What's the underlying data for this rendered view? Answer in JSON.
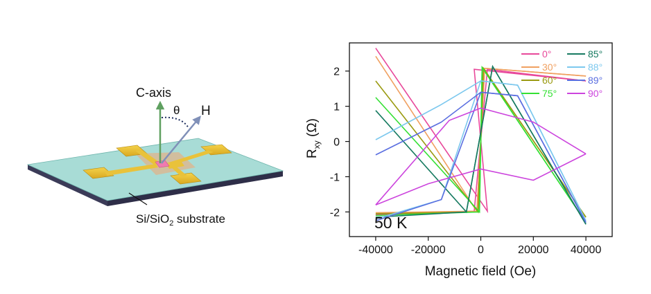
{
  "device": {
    "c_axis_label": "C-axis",
    "theta_label": "θ",
    "field_label": "H",
    "substrate_label_main": "Si/SiO",
    "substrate_label_sub": "2",
    "substrate_label_rest": " substrate"
  },
  "chart_data": {
    "type": "line",
    "title": "",
    "annotation": "50 K",
    "xlabel": "Magnetic field (Oe)",
    "ylabel_main": "R",
    "ylabel_sub": "xy",
    "ylabel_rest": " (Ω)",
    "xlim": [
      -50000,
      50000
    ],
    "ylim": [
      -2.7,
      2.8
    ],
    "x_ticks": [
      {
        "v": -40000,
        "label": "-40000"
      },
      {
        "v": -20000,
        "label": "-20000"
      },
      {
        "v": 0,
        "label": "0"
      },
      {
        "v": 20000,
        "label": "20000"
      },
      {
        "v": 40000,
        "label": "40000"
      }
    ],
    "y_ticks": [
      {
        "v": 2,
        "label": "2"
      },
      {
        "v": 1,
        "label": "1"
      },
      {
        "v": 0,
        "label": "0"
      },
      {
        "v": -1,
        "label": "-1"
      },
      {
        "v": -2,
        "label": "-2"
      }
    ],
    "legend_position": "top-right",
    "series": [
      {
        "name": "0°",
        "color": "#e8489a",
        "up_branch": [
          [
            -40000,
            -2.08
          ],
          [
            -2500,
            -1.98
          ],
          [
            2500,
            2.05
          ],
          [
            40000,
            1.72
          ]
        ],
        "down_branch": [
          [
            40000,
            1.72
          ],
          [
            -2500,
            2.05
          ],
          [
            2500,
            -1.98
          ],
          [
            -40000,
            2.65
          ]
        ]
      },
      {
        "name": "30°",
        "color": "#f0a060",
        "up_branch": [
          [
            -40000,
            -2.02
          ],
          [
            -1500,
            -1.98
          ],
          [
            1500,
            2.08
          ],
          [
            40000,
            1.86
          ]
        ],
        "down_branch": [
          [
            40000,
            1.86
          ],
          [
            1500,
            2.08
          ],
          [
            -1500,
            -1.98
          ],
          [
            -40000,
            2.42
          ]
        ]
      },
      {
        "name": "60°",
        "color": "#9a9a10",
        "up_branch": [
          [
            -40000,
            -2.05
          ],
          [
            -1000,
            -2.0
          ],
          [
            1000,
            2.08
          ],
          [
            40000,
            -2.15
          ]
        ],
        "down_branch": [
          [
            40000,
            -2.15
          ],
          [
            1000,
            2.08
          ],
          [
            -1000,
            -2.0
          ],
          [
            -40000,
            1.72
          ]
        ]
      },
      {
        "name": "75°",
        "color": "#33e033",
        "up_branch": [
          [
            -40000,
            -2.1
          ],
          [
            -500,
            -2.0
          ],
          [
            500,
            2.1
          ],
          [
            40000,
            -2.3
          ]
        ],
        "down_branch": [
          [
            40000,
            -2.3
          ],
          [
            500,
            2.1
          ],
          [
            -500,
            -2.0
          ],
          [
            -40000,
            1.25
          ]
        ]
      },
      {
        "name": "85°",
        "color": "#167a60",
        "up_branch": [
          [
            -40000,
            -2.15
          ],
          [
            -5500,
            -2.0
          ],
          [
            4500,
            2.13
          ],
          [
            40000,
            -2.35
          ]
        ],
        "down_branch": [
          [
            40000,
            -2.35
          ],
          [
            4500,
            2.13
          ],
          [
            -5500,
            -2.0
          ],
          [
            -40000,
            0.88
          ]
        ]
      },
      {
        "name": "88°",
        "color": "#7cc8ee",
        "up_branch": [
          [
            -40000,
            -2.2
          ],
          [
            -15000,
            -1.65
          ],
          [
            0,
            1.72
          ],
          [
            14000,
            1.6
          ],
          [
            40000,
            -2.25
          ]
        ],
        "down_branch": [
          [
            40000,
            -2.25
          ],
          [
            14000,
            1.6
          ],
          [
            0,
            1.72
          ],
          [
            -15000,
            1.05
          ],
          [
            -40000,
            0.05
          ]
        ]
      },
      {
        "name": "89°",
        "color": "#5a6ee0",
        "up_branch": [
          [
            -40000,
            -2.25
          ],
          [
            -15000,
            -1.65
          ],
          [
            0,
            1.4
          ],
          [
            14000,
            1.3
          ],
          [
            40000,
            -2.3
          ]
        ],
        "down_branch": [
          [
            40000,
            -2.3
          ],
          [
            14000,
            1.3
          ],
          [
            0,
            1.4
          ],
          [
            -15000,
            0.55
          ],
          [
            -40000,
            -0.38
          ]
        ]
      },
      {
        "name": "90°",
        "color": "#cc44dd",
        "up_branch": [
          [
            -40000,
            -1.8
          ],
          [
            -12000,
            0.6
          ],
          [
            0,
            0.95
          ],
          [
            20000,
            0.55
          ],
          [
            40000,
            -0.35
          ]
        ],
        "down_branch": [
          [
            40000,
            -0.35
          ],
          [
            20000,
            -1.1
          ],
          [
            0,
            -0.78
          ],
          [
            -20000,
            -1.2
          ],
          [
            -40000,
            -1.8
          ]
        ]
      }
    ]
  }
}
